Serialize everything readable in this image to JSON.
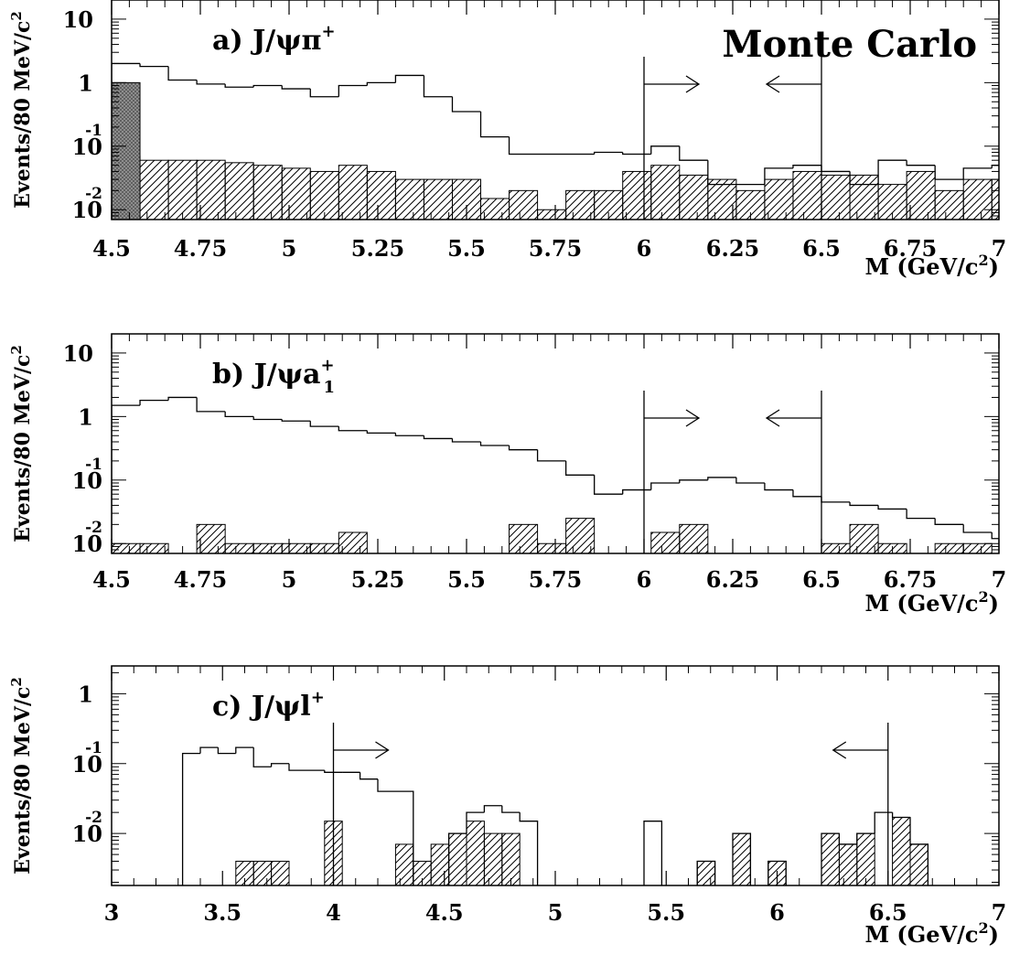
{
  "figure": {
    "annotation": "Monte Carlo"
  },
  "chart_data": [
    {
      "type": "histogram",
      "panel_label_text": "a) J/ψπ",
      "panel_label_sup": "+",
      "ylabel": "Events/80 MeV/c",
      "ylabel_sup": "2",
      "xlabel_text": "M (GeV/c",
      "xlabel_sup": "2",
      "xlabel_close": ")",
      "ylog": true,
      "xlim": [
        4.5,
        7.0
      ],
      "ylim": [
        0.007,
        20
      ],
      "bin_edges_start": 4.5,
      "bin_width": 0.08,
      "x_ticks": [
        {
          "v": 4.5,
          "t": "4.5"
        },
        {
          "v": 4.75,
          "t": "4.75"
        },
        {
          "v": 5,
          "t": "5"
        },
        {
          "v": 5.25,
          "t": "5.25"
        },
        {
          "v": 5.5,
          "t": "5.5"
        },
        {
          "v": 5.75,
          "t": "5.75"
        },
        {
          "v": 6,
          "t": "6"
        },
        {
          "v": 6.25,
          "t": "6.25"
        },
        {
          "v": 6.5,
          "t": "6.5"
        },
        {
          "v": 6.75,
          "t": "6.75"
        },
        {
          "v": 7,
          "t": "7"
        }
      ],
      "y_ticks": [
        {
          "v": 10,
          "t": "10",
          "sup": ""
        },
        {
          "v": 1,
          "t": "1",
          "sup": ""
        },
        {
          "v": 0.1,
          "t": "10",
          "sup": "-1"
        },
        {
          "v": 0.01,
          "t": "10",
          "sup": "-2"
        }
      ],
      "series": [
        {
          "style": "outline",
          "values": [
            2.0,
            1.8,
            1.1,
            0.95,
            0.85,
            0.9,
            0.8,
            0.6,
            0.9,
            1.0,
            1.3,
            0.6,
            0.35,
            0.14,
            0.075,
            0.075,
            0.075,
            0.08,
            0.075,
            0.1,
            0.06,
            0.025,
            0.025,
            0.045,
            0.05,
            0.04,
            0.025,
            0.06,
            0.05,
            0.03,
            0.045,
            0.05
          ]
        },
        {
          "style": "hatched",
          "values": [
            0.07,
            0.06,
            0.06,
            0.06,
            0.055,
            0.05,
            0.045,
            0.04,
            0.05,
            0.04,
            0.03,
            0.03,
            0.03,
            0.015,
            0.02,
            0.01,
            0.02,
            0.02,
            0.04,
            0.05,
            0.035,
            0.03,
            0.02,
            0.03,
            0.04,
            0.035,
            0.035,
            0.025,
            0.04,
            0.02,
            0.03,
            0.03
          ]
        },
        {
          "style": "shaded",
          "values": [
            1.0,
            0,
            0,
            0,
            0,
            0,
            0,
            0,
            0,
            0,
            0,
            0,
            0,
            0,
            0,
            0,
            0,
            0,
            0,
            0,
            0,
            0,
            0,
            0,
            0,
            0,
            0,
            0,
            0,
            0,
            0,
            0
          ]
        }
      ],
      "cuts": [
        {
          "x": 6.0,
          "direction": "right"
        },
        {
          "x": 6.5,
          "direction": "left"
        }
      ]
    },
    {
      "type": "histogram",
      "panel_label_text": "b) J/ψa",
      "panel_label_sup": "+",
      "panel_label_sub": "1",
      "ylabel": "Events/80 MeV/c",
      "ylabel_sup": "2",
      "xlabel_text": "M (GeV/c",
      "xlabel_sup": "2",
      "xlabel_close": ")",
      "ylog": true,
      "xlim": [
        4.5,
        7.0
      ],
      "ylim": [
        0.007,
        20
      ],
      "bin_edges_start": 4.5,
      "bin_width": 0.08,
      "x_ticks": [
        {
          "v": 4.5,
          "t": "4.5"
        },
        {
          "v": 4.75,
          "t": "4.75"
        },
        {
          "v": 5,
          "t": "5"
        },
        {
          "v": 5.25,
          "t": "5.25"
        },
        {
          "v": 5.5,
          "t": "5.5"
        },
        {
          "v": 5.75,
          "t": "5.75"
        },
        {
          "v": 6,
          "t": "6"
        },
        {
          "v": 6.25,
          "t": "6.25"
        },
        {
          "v": 6.5,
          "t": "6.5"
        },
        {
          "v": 6.75,
          "t": "6.75"
        },
        {
          "v": 7,
          "t": "7"
        }
      ],
      "y_ticks": [
        {
          "v": 10,
          "t": "10",
          "sup": ""
        },
        {
          "v": 1,
          "t": "1",
          "sup": ""
        },
        {
          "v": 0.1,
          "t": "10",
          "sup": "-1"
        },
        {
          "v": 0.01,
          "t": "10",
          "sup": "-2"
        }
      ],
      "series": [
        {
          "style": "outline",
          "values": [
            1.5,
            1.8,
            2.0,
            1.2,
            1.0,
            0.9,
            0.85,
            0.7,
            0.6,
            0.55,
            0.5,
            0.45,
            0.4,
            0.35,
            0.3,
            0.2,
            0.12,
            0.06,
            0.07,
            0.09,
            0.1,
            0.11,
            0.09,
            0.07,
            0.055,
            0.045,
            0.04,
            0.035,
            0.025,
            0.02,
            0.015,
            0.012
          ]
        },
        {
          "style": "hatched",
          "values": [
            0.01,
            0.01,
            0.005,
            0.02,
            0.01,
            0.01,
            0.01,
            0.01,
            0.015,
            0,
            0,
            0.005,
            0,
            0,
            0.02,
            0.01,
            0.025,
            0.005,
            0,
            0.015,
            0.02,
            0,
            0,
            0.005,
            0.005,
            0.01,
            0.02,
            0.01,
            0.005,
            0.01,
            0.01,
            0.005
          ]
        }
      ],
      "cuts": [
        {
          "x": 6.0,
          "direction": "right"
        },
        {
          "x": 6.5,
          "direction": "left"
        }
      ]
    },
    {
      "type": "histogram",
      "panel_label_text": "c) J/ψl",
      "panel_label_sup": "+",
      "ylabel": "Events/80 MeV/c",
      "ylabel_sup": "2",
      "xlabel_text": "M (GeV/c",
      "xlabel_sup": "2",
      "xlabel_close": ")",
      "ylog": true,
      "xlim": [
        3.0,
        7.0
      ],
      "ylim": [
        0.0018,
        2.5
      ],
      "bin_edges_start": 3.0,
      "bin_width": 0.08,
      "x_ticks": [
        {
          "v": 3,
          "t": "3"
        },
        {
          "v": 3.5,
          "t": "3.5"
        },
        {
          "v": 4,
          "t": "4"
        },
        {
          "v": 4.5,
          "t": "4.5"
        },
        {
          "v": 5,
          "t": "5"
        },
        {
          "v": 5.5,
          "t": "5.5"
        },
        {
          "v": 6,
          "t": "6"
        },
        {
          "v": 6.5,
          "t": "6.5"
        },
        {
          "v": 7,
          "t": "7"
        }
      ],
      "y_ticks": [
        {
          "v": 1,
          "t": "1",
          "sup": ""
        },
        {
          "v": 0.1,
          "t": "10",
          "sup": "-1"
        },
        {
          "v": 0.01,
          "t": "10",
          "sup": "-2"
        }
      ],
      "series": [
        {
          "style": "outline",
          "values": [
            0,
            0,
            0,
            0,
            0.14,
            0.17,
            0.14,
            0.17,
            0.09,
            0.1,
            0.08,
            0.08,
            0.075,
            0.075,
            0.06,
            0.04,
            0.04,
            0,
            0,
            0.01,
            0.02,
            0.025,
            0.02,
            0.015,
            0,
            0,
            0,
            0,
            0,
            0,
            0.015,
            0,
            0,
            0.004,
            0,
            0.01,
            0,
            0.004,
            0,
            0,
            0.01,
            0.007,
            0.01,
            0.02,
            0.017,
            0.007,
            0,
            0,
            0,
            0,
            0
          ]
        },
        {
          "style": "hatched",
          "values": [
            0,
            0,
            0,
            0,
            0,
            0,
            0,
            0.004,
            0.004,
            0.004,
            0,
            0,
            0.015,
            0,
            0,
            0,
            0.007,
            0.004,
            0.007,
            0.01,
            0.015,
            0.01,
            0.01,
            0,
            0,
            0,
            0,
            0,
            0,
            0,
            0,
            0,
            0,
            0.004,
            0,
            0.01,
            0,
            0.004,
            0,
            0,
            0.01,
            0.007,
            0.01,
            0,
            0.017,
            0.007,
            0,
            0,
            0,
            0,
            0
          ]
        }
      ],
      "cuts": [
        {
          "x": 4.0,
          "direction": "right"
        },
        {
          "x": 6.5,
          "direction": "left"
        }
      ]
    }
  ]
}
